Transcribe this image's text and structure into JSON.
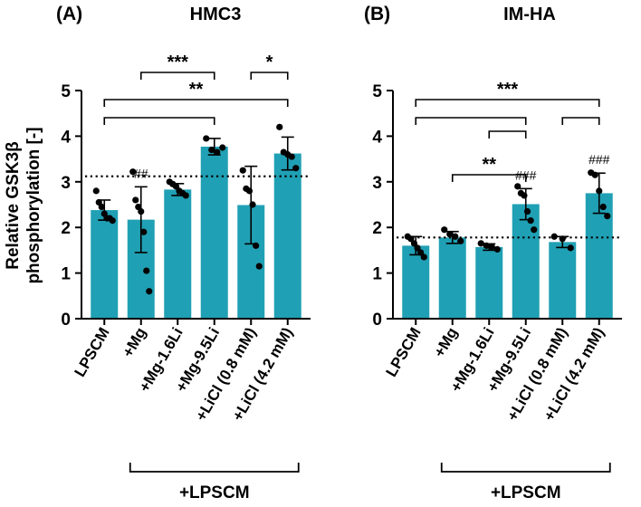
{
  "figure": {
    "ylabel_line1": "Relative GSK3β",
    "ylabel_line2": "phosphorylation [-]",
    "group_label": "+LPSCM",
    "bar_color": "#20A0B4",
    "y_ticks": [
      "0",
      "1",
      "2",
      "3",
      "4",
      "5"
    ]
  },
  "chart_data": [
    {
      "type": "bar",
      "panel": "(A)",
      "title": "HMC3",
      "categories": [
        "LPSCM",
        "+Mg",
        "+Mg-1.6Li",
        "+Mg-9.5Li",
        "+LiCl (0.8 mM)",
        "+LiCl (4.2 mM)"
      ],
      "values": [
        2.38,
        2.17,
        2.83,
        3.77,
        2.49,
        3.62
      ],
      "error": [
        0.22,
        0.72,
        0.13,
        0.18,
        0.85,
        0.36
      ],
      "points": [
        [
          2.8,
          2.55,
          2.45,
          2.3,
          2.2,
          2.2,
          2.15
        ],
        [
          3.22,
          2.6,
          2.45,
          2.35,
          1.9,
          1.05,
          0.6
        ],
        [
          3.0,
          2.95,
          2.9,
          2.8,
          2.75,
          2.7
        ],
        [
          3.95,
          3.7,
          3.65,
          3.75
        ],
        [
          3.25,
          2.85,
          2.8,
          2.5,
          1.6,
          1.15
        ],
        [
          4.2,
          3.65,
          3.6,
          3.55,
          3.3
        ]
      ],
      "annotations": [
        "",
        "##",
        "",
        "",
        "",
        ""
      ],
      "reference_line": 3.12,
      "ylim": [
        0,
        5
      ],
      "significance": [
        {
          "from": 1,
          "to": 3,
          "label": "***"
        },
        {
          "from": 4,
          "to": 5,
          "label": "*"
        },
        {
          "from": 0,
          "to": 5,
          "label": "**"
        },
        {
          "from": 0,
          "to": 3,
          "label": ""
        }
      ]
    },
    {
      "type": "bar",
      "panel": "(B)",
      "title": "IM-HA",
      "categories": [
        "LPSCM",
        "+Mg",
        "+Mg-1.6Li",
        "+Mg-9.5Li",
        "+LiCl (0.8 mM)",
        "+LiCl (4.2 mM)"
      ],
      "values": [
        1.6,
        1.78,
        1.57,
        2.51,
        1.68,
        2.75
      ],
      "error": [
        0.2,
        0.13,
        0.07,
        0.34,
        0.12,
        0.44
      ],
      "points": [
        [
          1.8,
          1.75,
          1.65,
          1.55,
          1.45,
          1.35
        ],
        [
          1.95,
          1.85,
          1.8,
          1.7
        ],
        [
          1.65,
          1.6,
          1.58,
          1.52
        ],
        [
          2.9,
          2.75,
          2.7,
          2.35,
          2.15,
          1.95
        ],
        [
          1.8,
          1.75,
          1.55
        ],
        [
          3.2,
          3.15,
          2.8,
          2.45,
          2.25
        ]
      ],
      "annotations": [
        "",
        "",
        "",
        "###",
        "",
        "###"
      ],
      "reference_line": 1.78,
      "ylim": [
        0,
        5
      ],
      "significance": [
        {
          "from": 0,
          "to": 5,
          "label": "***"
        },
        {
          "from": 0,
          "to": 3,
          "label": ""
        },
        {
          "from": 4,
          "to": 5,
          "label": ""
        },
        {
          "from": 2,
          "to": 3,
          "label": ""
        },
        {
          "from": 1,
          "to": 3,
          "label": "**"
        }
      ]
    }
  ]
}
